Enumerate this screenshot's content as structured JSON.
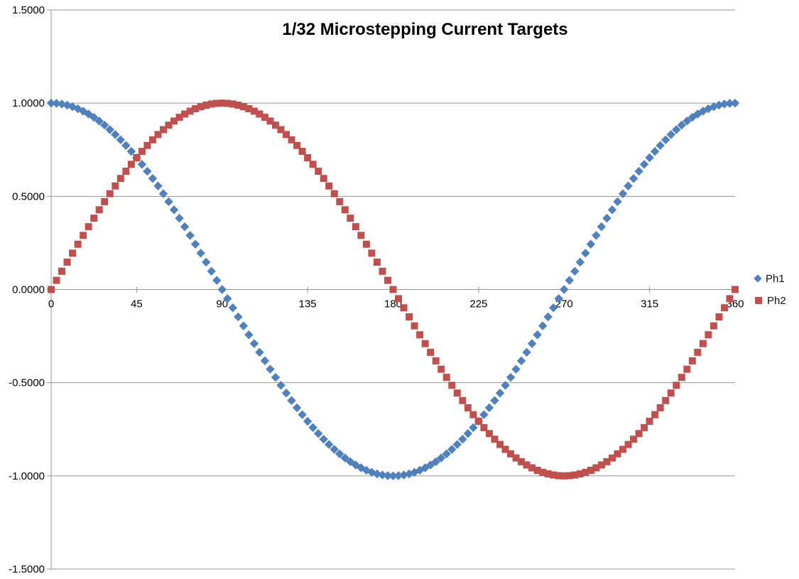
{
  "chart_data": {
    "type": "scatter",
    "title": "1/32 Microstepping Current Targets",
    "legend": {
      "position": "right",
      "entries": [
        "Ph1",
        "Ph2"
      ]
    },
    "grid": "horizontal-only",
    "x_axis": {
      "min": 0,
      "max": 360,
      "tick_values": [
        0,
        45,
        90,
        135,
        180,
        225,
        270,
        315,
        360
      ],
      "tick_labels": [
        "0",
        "45",
        "90",
        "135",
        "180",
        "225",
        "270",
        "315",
        "360"
      ]
    },
    "y_axis": {
      "min": -1.5,
      "max": 1.5,
      "tick_values": [
        1.5,
        1.0,
        0.5,
        0.0,
        -0.5,
        -1.0,
        -1.5
      ],
      "tick_labels": [
        "1.5000",
        "1.0000",
        "0.5000",
        "0.0000",
        "-0.5000",
        "-1.0000",
        "-1.5000"
      ]
    },
    "colors": {
      "ph1": "#4F81BD",
      "ph2": "#C0504D",
      "gridline": "#969696",
      "axis": "#969696",
      "text": "#000000"
    },
    "x_step_degrees": 2.8125,
    "x": [
      0,
      2.8125,
      5.625,
      8.4375,
      11.25,
      14.0625,
      16.875,
      19.6875,
      22.5,
      25.3125,
      28.125,
      30.9375,
      33.75,
      36.5625,
      39.375,
      42.1875,
      45,
      47.8125,
      50.625,
      53.4375,
      56.25,
      59.0625,
      61.875,
      64.6875,
      67.5,
      70.3125,
      73.125,
      75.9375,
      78.75,
      81.5625,
      84.375,
      87.1875,
      90,
      92.8125,
      95.625,
      98.4375,
      101.25,
      104.0625,
      106.875,
      109.6875,
      112.5,
      115.3125,
      118.125,
      120.9375,
      123.75,
      126.5625,
      129.375,
      132.1875,
      135,
      137.8125,
      140.625,
      143.4375,
      146.25,
      149.0625,
      151.875,
      154.6875,
      157.5,
      160.3125,
      163.125,
      165.9375,
      168.75,
      171.5625,
      174.375,
      177.1875,
      180,
      182.8125,
      185.625,
      188.4375,
      191.25,
      194.0625,
      196.875,
      199.6875,
      202.5,
      205.3125,
      208.125,
      210.9375,
      213.75,
      216.5625,
      219.375,
      222.1875,
      225,
      227.8125,
      230.625,
      233.4375,
      236.25,
      239.0625,
      241.875,
      244.6875,
      247.5,
      250.3125,
      253.125,
      255.9375,
      258.75,
      261.5625,
      264.375,
      267.1875,
      270,
      272.8125,
      275.625,
      278.4375,
      281.25,
      284.0625,
      286.875,
      289.6875,
      292.5,
      295.3125,
      298.125,
      300.9375,
      303.75,
      306.5625,
      309.375,
      312.1875,
      315,
      317.8125,
      320.625,
      323.4375,
      326.25,
      329.0625,
      331.875,
      334.6875,
      337.5,
      340.3125,
      343.125,
      345.9375,
      348.75,
      351.5625,
      354.375,
      357.1875,
      360
    ],
    "series": [
      {
        "name": "Ph1",
        "marker": "diamond",
        "color": "#4F81BD",
        "values": [
          1.0,
          0.9988,
          0.9952,
          0.9892,
          0.9808,
          0.97,
          0.9569,
          0.9415,
          0.9239,
          0.904,
          0.8819,
          0.8577,
          0.8315,
          0.8032,
          0.773,
          0.741,
          0.7071,
          0.6716,
          0.6344,
          0.5957,
          0.5556,
          0.5141,
          0.4714,
          0.4276,
          0.3827,
          0.3369,
          0.2903,
          0.243,
          0.1951,
          0.1467,
          0.098,
          0.0491,
          0.0,
          -0.0491,
          -0.098,
          -0.1467,
          -0.1951,
          -0.243,
          -0.2903,
          -0.3369,
          -0.3827,
          -0.4276,
          -0.4714,
          -0.5141,
          -0.5556,
          -0.5957,
          -0.6344,
          -0.6716,
          -0.7071,
          -0.741,
          -0.773,
          -0.8032,
          -0.8315,
          -0.8577,
          -0.8819,
          -0.904,
          -0.9239,
          -0.9415,
          -0.9569,
          -0.97,
          -0.9808,
          -0.9892,
          -0.9952,
          -0.9988,
          -1.0,
          -0.9988,
          -0.9952,
          -0.9892,
          -0.9808,
          -0.97,
          -0.9569,
          -0.9415,
          -0.9239,
          -0.904,
          -0.8819,
          -0.8577,
          -0.8315,
          -0.8032,
          -0.773,
          -0.741,
          -0.7071,
          -0.6716,
          -0.6344,
          -0.5957,
          -0.5556,
          -0.5141,
          -0.4714,
          -0.4276,
          -0.3827,
          -0.3369,
          -0.2903,
          -0.243,
          -0.1951,
          -0.1467,
          -0.098,
          -0.0491,
          0.0,
          0.0491,
          0.098,
          0.1467,
          0.1951,
          0.243,
          0.2903,
          0.3369,
          0.3827,
          0.4276,
          0.4714,
          0.5141,
          0.5556,
          0.5957,
          0.6344,
          0.6716,
          0.7071,
          0.741,
          0.773,
          0.8032,
          0.8315,
          0.8577,
          0.8819,
          0.904,
          0.9239,
          0.9415,
          0.9569,
          0.97,
          0.9808,
          0.9892,
          0.9952,
          0.9988,
          1.0
        ]
      },
      {
        "name": "Ph2",
        "marker": "square",
        "color": "#C0504D",
        "values": [
          0.0,
          0.0491,
          0.098,
          0.1467,
          0.1951,
          0.243,
          0.2903,
          0.3369,
          0.3827,
          0.4276,
          0.4714,
          0.5141,
          0.5556,
          0.5957,
          0.6344,
          0.6716,
          0.7071,
          0.741,
          0.773,
          0.8032,
          0.8315,
          0.8577,
          0.8819,
          0.904,
          0.9239,
          0.9415,
          0.9569,
          0.97,
          0.9808,
          0.9892,
          0.9952,
          0.9988,
          1.0,
          0.9988,
          0.9952,
          0.9892,
          0.9808,
          0.97,
          0.9569,
          0.9415,
          0.9239,
          0.904,
          0.8819,
          0.8577,
          0.8315,
          0.8032,
          0.773,
          0.741,
          0.7071,
          0.6716,
          0.6344,
          0.5957,
          0.5556,
          0.5141,
          0.4714,
          0.4276,
          0.3827,
          0.3369,
          0.2903,
          0.243,
          0.1951,
          0.1467,
          0.098,
          0.0491,
          0.0,
          -0.0491,
          -0.098,
          -0.1467,
          -0.1951,
          -0.243,
          -0.2903,
          -0.3369,
          -0.3827,
          -0.4276,
          -0.4714,
          -0.5141,
          -0.5556,
          -0.5957,
          -0.6344,
          -0.6716,
          -0.7071,
          -0.741,
          -0.773,
          -0.8032,
          -0.8315,
          -0.8577,
          -0.8819,
          -0.904,
          -0.9239,
          -0.9415,
          -0.9569,
          -0.97,
          -0.9808,
          -0.9892,
          -0.9952,
          -0.9988,
          -1.0,
          -0.9988,
          -0.9952,
          -0.9892,
          -0.9808,
          -0.97,
          -0.9569,
          -0.9415,
          -0.9239,
          -0.904,
          -0.8819,
          -0.8577,
          -0.8315,
          -0.8032,
          -0.773,
          -0.741,
          -0.7071,
          -0.6716,
          -0.6344,
          -0.5957,
          -0.5556,
          -0.5141,
          -0.4714,
          -0.4276,
          -0.3827,
          -0.3369,
          -0.2903,
          -0.243,
          -0.1951,
          -0.1467,
          -0.098,
          -0.0491,
          0.0
        ]
      }
    ]
  }
}
